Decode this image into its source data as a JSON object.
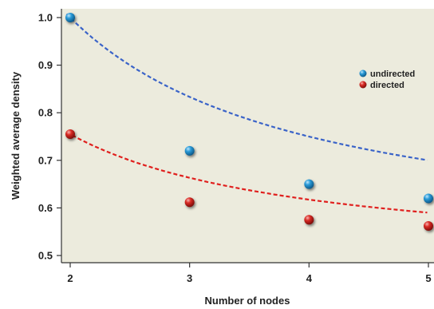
{
  "chart_data": {
    "type": "line",
    "title": "",
    "xlabel": "Number of nodes",
    "ylabel": "Weighted average density",
    "xlim": [
      2,
      5
    ],
    "ylim": [
      0.5,
      1.0
    ],
    "x_ticks": [
      "2",
      "3",
      "4",
      "5"
    ],
    "y_ticks": [
      "0.5",
      "0.6",
      "0.7",
      "0.8",
      "0.9",
      "1.0"
    ],
    "grid": false,
    "legend_position": "right",
    "background_color": "#ecebdd",
    "series": [
      {
        "name": "undirected",
        "color": "#1f86c8",
        "line_color": "#3a63c8",
        "x": [
          2,
          3,
          4,
          5
        ],
        "y": [
          1.0,
          0.72,
          0.65,
          0.62
        ],
        "fit": {
          "a": 0.5,
          "b": 1.0
        }
      },
      {
        "name": "directed",
        "color": "#d42424",
        "line_color": "#e0201e",
        "x": [
          2,
          3,
          4,
          5
        ],
        "y": [
          0.755,
          0.612,
          0.575,
          0.562
        ],
        "fit": {
          "a": 0.48,
          "b": 0.55
        }
      }
    ]
  }
}
